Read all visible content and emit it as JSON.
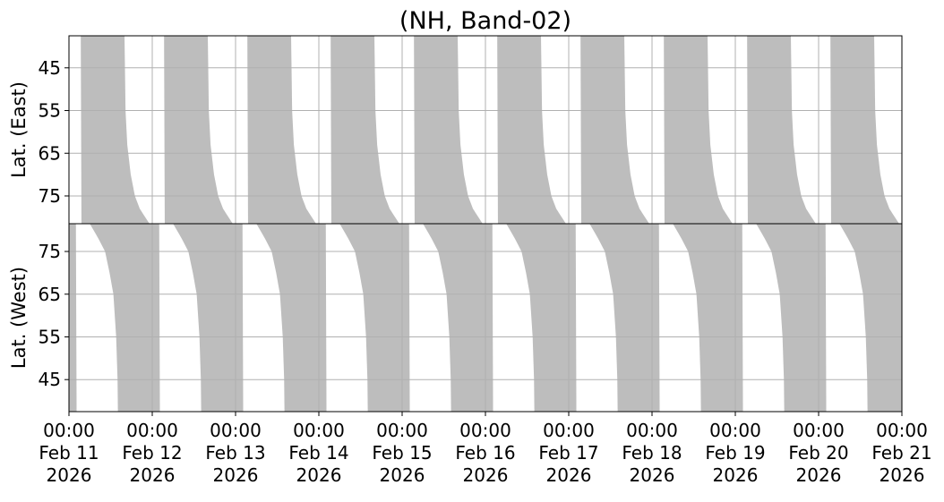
{
  "chart_data": {
    "type": "area",
    "title": "(NH, Band-02)",
    "panels": [
      {
        "name": "east",
        "ylabel": "Lat. (East)",
        "ylim": [
          37.5,
          81.5
        ],
        "y_inverted": false,
        "yticks": [
          45,
          55,
          65,
          75
        ],
        "coverage_daily": {
          "start_hour_by_lat": [
            [
              37.5,
              3.4
            ],
            [
              81.5,
              3.6
            ]
          ],
          "end_hour_by_lat": [
            [
              37.5,
              16.0
            ],
            [
              49,
              16.2
            ],
            [
              55,
              16.3
            ],
            [
              63,
              16.8
            ],
            [
              70,
              17.8
            ],
            [
              75,
              19.0
            ],
            [
              78,
              20.4
            ],
            [
              81.5,
              23.2
            ]
          ]
        }
      },
      {
        "name": "west",
        "ylabel": "Lat. (West)",
        "ylim": [
          37.5,
          81.5
        ],
        "y_inverted": true,
        "yticks": [
          45,
          55,
          65,
          75
        ],
        "coverage_daily": {
          "start_hour_by_lat": [
            [
              37.5,
              14.1
            ],
            [
              45,
              14.0
            ],
            [
              55,
              13.6
            ],
            [
              65,
              12.8
            ],
            [
              70,
              11.7
            ],
            [
              75,
              10.4
            ],
            [
              78,
              8.5
            ],
            [
              81.5,
              6.0
            ]
          ],
          "end_hour_by_lat": [
            [
              37.5,
              26.2
            ],
            [
              81.5,
              26.0
            ]
          ]
        }
      }
    ],
    "x_range": [
      "2026-02-11 00:00",
      "2026-02-21 00:00"
    ],
    "xticks": [
      {
        "time": "00:00",
        "date": "Feb 11",
        "year": "2026"
      },
      {
        "time": "00:00",
        "date": "Feb 12",
        "year": "2026"
      },
      {
        "time": "00:00",
        "date": "Feb 13",
        "year": "2026"
      },
      {
        "time": "00:00",
        "date": "Feb 14",
        "year": "2026"
      },
      {
        "time": "00:00",
        "date": "Feb 15",
        "year": "2026"
      },
      {
        "time": "00:00",
        "date": "Feb 16",
        "year": "2026"
      },
      {
        "time": "00:00",
        "date": "Feb 17",
        "year": "2026"
      },
      {
        "time": "00:00",
        "date": "Feb 18",
        "year": "2026"
      },
      {
        "time": "00:00",
        "date": "Feb 19",
        "year": "2026"
      },
      {
        "time": "00:00",
        "date": "Feb 20",
        "year": "2026"
      },
      {
        "time": "00:00",
        "date": "Feb 21",
        "year": "2026"
      }
    ],
    "grid": true,
    "colors": {
      "coverage": "#bdbdbd",
      "grid": "#b0b0b0"
    }
  }
}
